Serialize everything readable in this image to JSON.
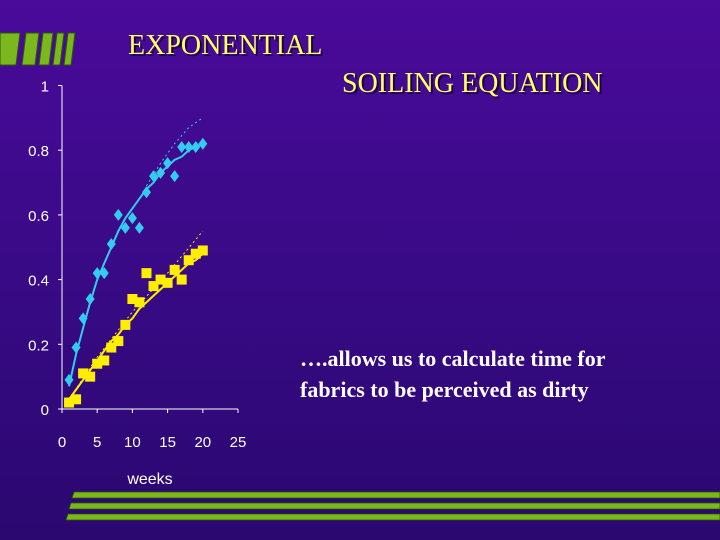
{
  "title": {
    "line1": "EXPONENTIAL",
    "line2": "SOILING EQUATION"
  },
  "callout": {
    "line1": "….allows us to calculate time for",
    "line2": "fabrics to be perceived as dirty"
  },
  "colors": {
    "background": "#3a0a88",
    "title": "#ffff66",
    "cyan_series": "#33ccee",
    "yellow_series": "#ffee00",
    "accent_green": "#7ab81e"
  },
  "chart_data": {
    "type": "scatter",
    "xlabel": "weeks",
    "ylabel": "",
    "xlim": [
      0,
      25
    ],
    "ylim": [
      0,
      1
    ],
    "xticks": [
      0,
      5,
      10,
      15,
      20,
      25
    ],
    "yticks": [
      0,
      0.2,
      0.4,
      0.6,
      0.8,
      1
    ],
    "grid": false,
    "series": [
      {
        "marker": "diamond",
        "color": "#33ccee",
        "x": [
          1,
          2,
          3,
          4,
          5,
          6,
          7,
          8,
          9,
          10,
          11,
          12,
          13,
          14,
          15,
          16,
          17,
          18,
          19,
          20
        ],
        "y": [
          0.09,
          0.19,
          0.28,
          0.34,
          0.42,
          0.42,
          0.51,
          0.6,
          0.56,
          0.59,
          0.56,
          0.67,
          0.72,
          0.73,
          0.76,
          0.72,
          0.81,
          0.81,
          0.81,
          0.82
        ],
        "fit_solid": [
          [
            1,
            0.07
          ],
          [
            2,
            0.17
          ],
          [
            3,
            0.25
          ],
          [
            4,
            0.33
          ],
          [
            5,
            0.4
          ],
          [
            6,
            0.45
          ],
          [
            7,
            0.5
          ],
          [
            8,
            0.55
          ],
          [
            9,
            0.59
          ],
          [
            10,
            0.62
          ],
          [
            11,
            0.65
          ],
          [
            12,
            0.68
          ],
          [
            13,
            0.7
          ],
          [
            14,
            0.73
          ],
          [
            15,
            0.75
          ],
          [
            16,
            0.77
          ],
          [
            17,
            0.78
          ],
          [
            18,
            0.8
          ],
          [
            19,
            0.81
          ],
          [
            20,
            0.82
          ]
        ],
        "fit_dotted": [
          [
            12,
            0.69
          ],
          [
            14,
            0.76
          ],
          [
            16,
            0.82
          ],
          [
            18,
            0.87
          ],
          [
            20,
            0.9
          ]
        ]
      },
      {
        "marker": "square",
        "color": "#ffee00",
        "x": [
          1,
          2,
          3,
          4,
          5,
          6,
          7,
          8,
          9,
          10,
          11,
          12,
          13,
          14,
          15,
          16,
          17,
          18,
          19,
          20
        ],
        "y": [
          0.02,
          0.03,
          0.11,
          0.1,
          0.14,
          0.15,
          0.19,
          0.21,
          0.26,
          0.34,
          0.33,
          0.42,
          0.38,
          0.4,
          0.39,
          0.43,
          0.4,
          0.46,
          0.48,
          0.49
        ],
        "fit_solid": [
          [
            1,
            0.03
          ],
          [
            2,
            0.06
          ],
          [
            3,
            0.09
          ],
          [
            4,
            0.12
          ],
          [
            5,
            0.15
          ],
          [
            6,
            0.18
          ],
          [
            7,
            0.21
          ],
          [
            8,
            0.23
          ],
          [
            9,
            0.26
          ],
          [
            10,
            0.28
          ],
          [
            11,
            0.31
          ],
          [
            12,
            0.33
          ],
          [
            13,
            0.35
          ],
          [
            14,
            0.37
          ],
          [
            15,
            0.39
          ],
          [
            16,
            0.41
          ],
          [
            17,
            0.43
          ],
          [
            18,
            0.45
          ],
          [
            19,
            0.46
          ],
          [
            20,
            0.48
          ]
        ],
        "fit_dotted": [
          [
            1,
            0.03
          ],
          [
            5,
            0.16
          ],
          [
            10,
            0.3
          ],
          [
            15,
            0.42
          ],
          [
            20,
            0.55
          ]
        ]
      }
    ]
  }
}
